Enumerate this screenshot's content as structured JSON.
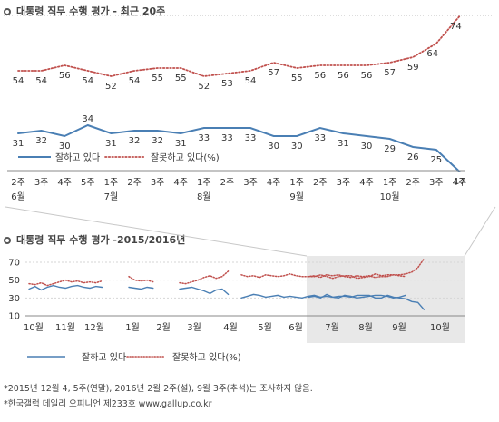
{
  "chart_data": [
    {
      "type": "line",
      "title": "대통령 직무 수행 평가 - 최근 20주",
      "x_labels": [
        [
          "2주",
          "6월"
        ],
        [
          "3주",
          ""
        ],
        [
          "4주",
          ""
        ],
        [
          "5주",
          ""
        ],
        [
          "1주",
          "7월"
        ],
        [
          "2주",
          ""
        ],
        [
          "3주",
          ""
        ],
        [
          "4주",
          ""
        ],
        [
          "1주",
          "8월"
        ],
        [
          "2주",
          ""
        ],
        [
          "3주",
          ""
        ],
        [
          "4주",
          ""
        ],
        [
          "1주",
          "9월"
        ],
        [
          "2주",
          ""
        ],
        [
          "3주",
          ""
        ],
        [
          "4주",
          ""
        ],
        [
          "1주",
          "10월"
        ],
        [
          "2주",
          ""
        ],
        [
          "3주",
          ""
        ],
        [
          "4주",
          ""
        ]
      ],
      "series": [
        {
          "name": "잘하고 있다",
          "color": "#4a7fb4",
          "style": "solid",
          "values": [
            31,
            32,
            30,
            34,
            31,
            32,
            32,
            31,
            33,
            33,
            33,
            30,
            30,
            33,
            31,
            30,
            29,
            26,
            25,
            17
          ]
        },
        {
          "name": "잘못하고 있다(%)",
          "color": "#c0504d",
          "style": "dotted",
          "values": [
            54,
            54,
            56,
            54,
            52,
            54,
            55,
            55,
            52,
            53,
            54,
            57,
            55,
            56,
            56,
            56,
            57,
            59,
            64,
            74
          ]
        }
      ],
      "ylim": [
        10,
        80
      ]
    },
    {
      "type": "line",
      "title": "대통령 직무 수행 평가 -2015/2016년",
      "y_ticks": [
        10,
        30,
        50,
        70
      ],
      "ylim": [
        10,
        80
      ],
      "month_labels": [
        "10월",
        "11월",
        "12월",
        "1월",
        "2월",
        "3월",
        "4월",
        "5월",
        "6월",
        "7월",
        "8월",
        "9월",
        "10월"
      ],
      "highlight": "recent 20 weeks (6월~10월)",
      "series": [
        {
          "name": "잘하고 있다",
          "color": "#4a7fb4",
          "style": "solid",
          "segments": [
            [
              40,
              43,
              39,
              42,
              44,
              42,
              41,
              43,
              44,
              42,
              41,
              43,
              42
            ],
            [
              42,
              41,
              40,
              42,
              41
            ],
            [
              40,
              41,
              42,
              40,
              38,
              35,
              39,
              40,
              34
            ],
            [
              30,
              32,
              34,
              33,
              31,
              32,
              33,
              31,
              32,
              31,
              30,
              32,
              33,
              31,
              32,
              31,
              30,
              33,
              32,
              30,
              31,
              32,
              33,
              33,
              32,
              30,
              31,
              33
            ],
            [
              31,
              32,
              30,
              34,
              31,
              32,
              32,
              31,
              33,
              33,
              33,
              30,
              30,
              33,
              31,
              30,
              29,
              26,
              25,
              17
            ]
          ]
        },
        {
          "name": "잘못하고 있다(%)",
          "color": "#c0504d",
          "style": "dotted",
          "segments": [
            [
              46,
              45,
              47,
              44,
              46,
              48,
              50,
              48,
              49,
              47,
              48,
              47,
              49
            ],
            [
              54,
              50,
              49,
              50,
              48
            ],
            [
              47,
              46,
              48,
              50,
              53,
              55,
              52,
              54,
              60
            ],
            [
              56,
              54,
              55,
              53,
              56,
              55,
              54,
              55,
              57,
              55,
              54,
              54,
              55,
              53,
              56,
              55,
              56,
              54,
              53,
              55,
              54,
              55,
              53,
              54,
              54,
              56,
              55,
              54
            ],
            [
              54,
              54,
              56,
              54,
              52,
              54,
              55,
              55,
              52,
              53,
              54,
              57,
              55,
              56,
              56,
              56,
              57,
              59,
              64,
              74
            ]
          ]
        }
      ]
    }
  ],
  "notes": [
    "*2015년 12월 4, 5주(연말), 2016년 2월 2주(설), 9월 3주(추석)는 조사하지 않음.",
    "*한국갤럽 데일리 오피니언 제233호 www.gallup.co.kr"
  ]
}
